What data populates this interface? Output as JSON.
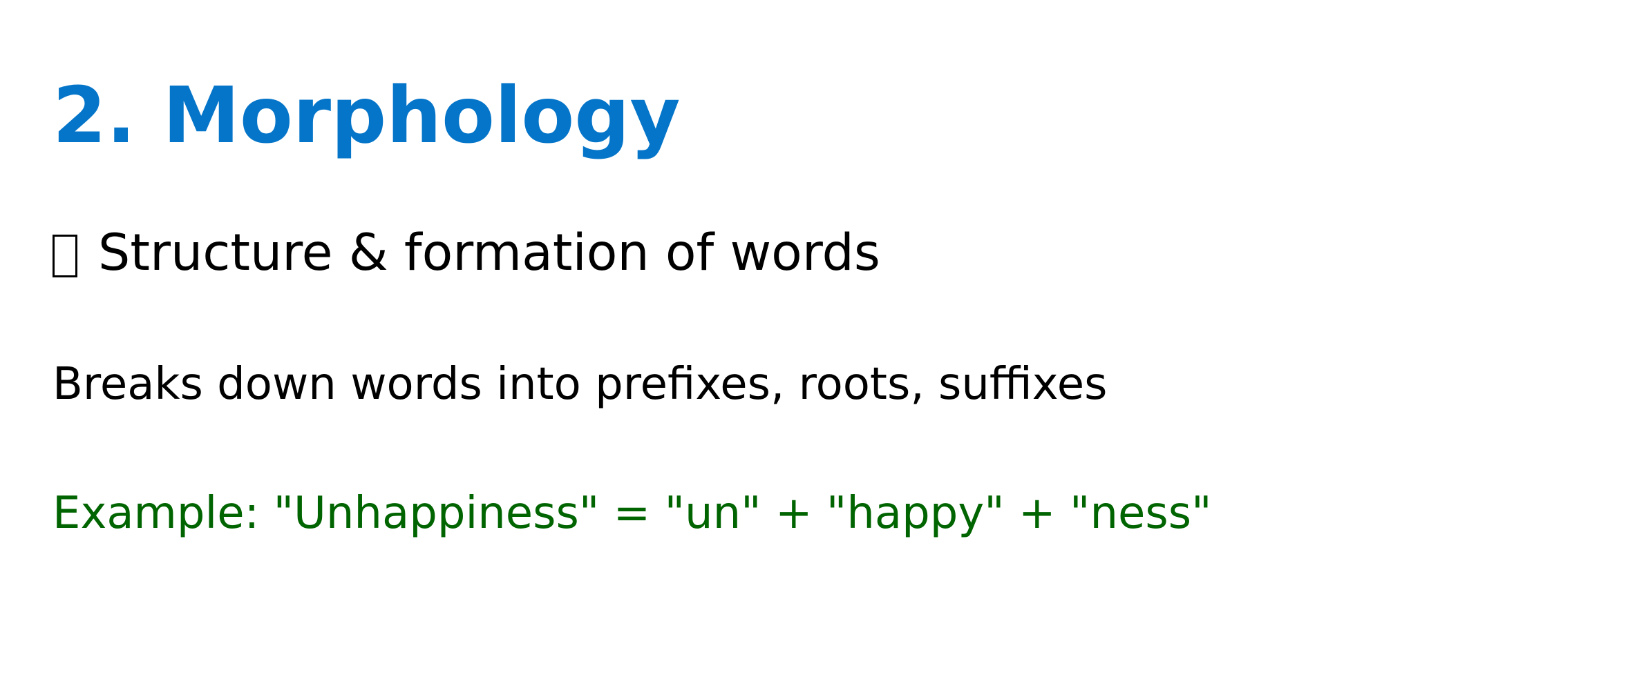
{
  "slide": {
    "title": "2. Morphology",
    "subheading": {
      "icon": "missing-glyph-box-icon",
      "text": "Structure & formation of words"
    },
    "description": "Breaks down words into prefixes, roots, suffixes",
    "example": "Example: \"Unhappiness\" = \"un\" + \"happy\" + \"ness\""
  },
  "colors": {
    "title": "#0575C9",
    "text": "#000000",
    "example": "#006400",
    "background": "#FFFFFF"
  }
}
